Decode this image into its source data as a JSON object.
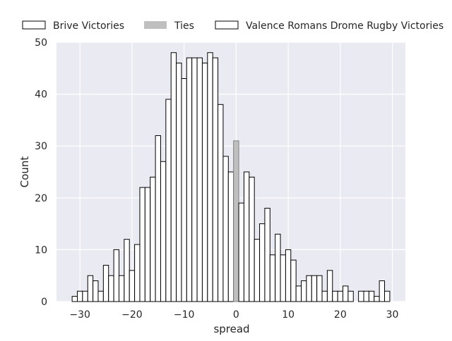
{
  "chart_data": {
    "type": "bar",
    "xlabel": "spread",
    "ylabel": "Count",
    "xlim": [
      -34.5,
      32.5
    ],
    "ylim": [
      0,
      50
    ],
    "x_ticks": [
      -30,
      -20,
      -10,
      0,
      10,
      20,
      30
    ],
    "y_ticks": [
      0,
      10,
      20,
      30,
      40,
      50
    ],
    "x_tick_labels": [
      "−30",
      "−20",
      "−10",
      "0",
      "10",
      "20",
      "30"
    ],
    "y_tick_labels": [
      "0",
      "10",
      "20",
      "30",
      "40",
      "50"
    ],
    "grid": true,
    "background": "#eaeaf2",
    "legend_placement": "top",
    "series": [
      {
        "name": "Brive Victories",
        "facecolor": "#ffffff",
        "edgecolor": "#000000",
        "x": [
          -31,
          -30,
          -29,
          -28,
          -27,
          -26,
          -25,
          -24,
          -23,
          -22,
          -21,
          -20,
          -19,
          -18,
          -17,
          -16,
          -15,
          -14,
          -13,
          -12,
          -11,
          -10,
          -9,
          -8,
          -7,
          -6,
          -5,
          -4,
          -3,
          -2,
          -1
        ],
        "values": [
          1,
          2,
          2,
          5,
          4,
          2,
          7,
          5,
          10,
          5,
          12,
          6,
          11,
          22,
          22,
          24,
          32,
          27,
          39,
          48,
          46,
          43,
          47,
          47,
          47,
          46,
          48,
          47,
          38,
          28,
          25
        ]
      },
      {
        "name": "Ties",
        "facecolor": "#bfbfbf",
        "edgecolor": "#808080",
        "x": [
          0
        ],
        "values": [
          31
        ]
      },
      {
        "name": "Valence Romans Drome Rugby Victories",
        "facecolor": "#ffffff",
        "edgecolor": "#000000",
        "x": [
          1,
          2,
          3,
          4,
          5,
          6,
          7,
          8,
          9,
          10,
          11,
          12,
          13,
          14,
          15,
          16,
          17,
          18,
          19,
          20,
          21,
          22,
          23,
          24,
          25,
          26,
          27,
          28,
          29
        ],
        "values": [
          19,
          25,
          24,
          12,
          15,
          18,
          9,
          13,
          9,
          10,
          8,
          3,
          4,
          5,
          5,
          5,
          2,
          6,
          2,
          2,
          3,
          2,
          0,
          2,
          2,
          2,
          1,
          4,
          2
        ]
      }
    ]
  }
}
